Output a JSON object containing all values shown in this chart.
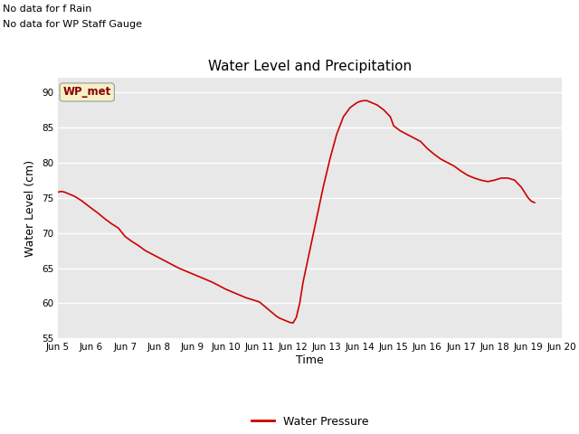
{
  "title": "Water Level and Precipitation",
  "xlabel": "Time",
  "ylabel": "Water Level (cm)",
  "ylim": [
    55,
    92
  ],
  "yticks": [
    55,
    60,
    65,
    70,
    75,
    80,
    85,
    90
  ],
  "background_color": "#e8e8e8",
  "line_color": "#cc0000",
  "legend_label": "Water Pressure",
  "no_data_text1": "No data for f Rain",
  "no_data_text2": "No data for WP Staff Gauge",
  "wp_met_label": "WP_met",
  "x_tick_labels": [
    "Jun 5",
    "Jun 6",
    "Jun 7",
    "Jun 8",
    "Jun 9",
    "Jun 10",
    "Jun 11",
    "Jun 12",
    "Jun 13",
    "Jun 14",
    "Jun 15",
    "Jun 16",
    "Jun 17",
    "Jun 18",
    "Jun 19",
    "Jun 20"
  ],
  "x_values": [
    5.0,
    5.1,
    5.2,
    5.3,
    5.5,
    5.7,
    6.0,
    6.2,
    6.4,
    6.6,
    6.8,
    7.0,
    7.2,
    7.4,
    7.6,
    7.8,
    8.0,
    8.2,
    8.4,
    8.6,
    8.8,
    9.0,
    9.2,
    9.4,
    9.6,
    9.8,
    10.0,
    10.2,
    10.4,
    10.6,
    10.8,
    11.0,
    11.1,
    11.2,
    11.3,
    11.4,
    11.5,
    11.6,
    11.7,
    11.8,
    11.85,
    11.9,
    12.0,
    12.1,
    12.2,
    12.3,
    12.5,
    12.7,
    12.9,
    13.1,
    13.3,
    13.5,
    13.7,
    13.9,
    14.0,
    14.1,
    14.2,
    14.3,
    14.5,
    14.7,
    14.9,
    15.0,
    15.2,
    15.4,
    15.6,
    15.8,
    16.0,
    16.2,
    16.4,
    16.6,
    16.8,
    17.0,
    17.2,
    17.4,
    17.6,
    17.8,
    18.0,
    18.2,
    18.4,
    18.6,
    18.8,
    19.0,
    19.1,
    19.2
  ],
  "y_values": [
    75.8,
    75.9,
    75.8,
    75.6,
    75.2,
    74.6,
    73.5,
    72.8,
    72.0,
    71.3,
    70.7,
    69.5,
    68.8,
    68.2,
    67.5,
    67.0,
    66.5,
    66.0,
    65.5,
    65.0,
    64.6,
    64.2,
    63.8,
    63.4,
    63.0,
    62.5,
    62.0,
    61.6,
    61.2,
    60.8,
    60.5,
    60.2,
    59.8,
    59.4,
    59.0,
    58.6,
    58.2,
    57.9,
    57.7,
    57.5,
    57.4,
    57.3,
    57.2,
    58.0,
    60.0,
    63.0,
    67.5,
    72.0,
    76.5,
    80.5,
    84.0,
    86.5,
    87.8,
    88.5,
    88.7,
    88.8,
    88.8,
    88.6,
    88.2,
    87.5,
    86.5,
    85.2,
    84.5,
    84.0,
    83.5,
    83.0,
    82.0,
    81.2,
    80.5,
    80.0,
    79.5,
    78.8,
    78.2,
    77.8,
    77.5,
    77.3,
    77.5,
    77.8,
    77.8,
    77.5,
    76.5,
    75.0,
    74.5,
    74.3
  ]
}
